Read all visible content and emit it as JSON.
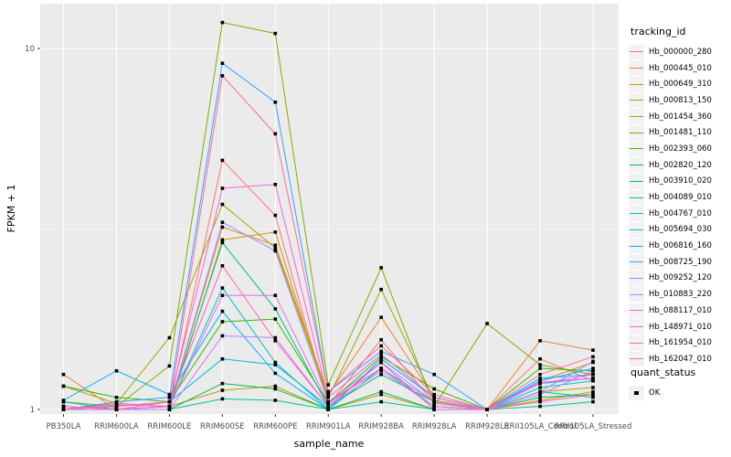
{
  "figure": {
    "background": "#FFFFFF",
    "panel_background": "#EBEBEB",
    "grid_color": "#FFFFFF",
    "tick_color": "#333333",
    "tick_label_color": "#4D4D4D",
    "point_color": "#000000",
    "legend_key_background": "#F2F2F2"
  },
  "axes": {
    "x_title": "sample_name",
    "y_title": "FPKM + 1",
    "y_tick_labels": [
      "10",
      "1"
    ]
  },
  "legend": {
    "tracking_title": "tracking_id",
    "quant_title": "quant_status",
    "quant_items": [
      {
        "label": "OK",
        "marker": "filled-square",
        "color": "#000000"
      }
    ]
  },
  "chart_data": {
    "type": "line",
    "title": "",
    "xlabel": "sample_name",
    "ylabel": "FPKM + 1",
    "y_scale": "log10",
    "y_ticks": [
      1,
      10
    ],
    "y_minor_ticks": [
      3.1623
    ],
    "ylim": [
      0.97,
      13.3
    ],
    "legend_position": "right",
    "point_marker": "filled-square",
    "x_categories": [
      "PB350LA",
      "RRIM600LA",
      "RRIM600LE",
      "RRIM600SE",
      "RRIM600PE",
      "RRIM901LA",
      "RRIM928BA",
      "RRIM928LA",
      "RRIM928LE",
      "RRII105LA_Control",
      "RRII105LA_Stressed"
    ],
    "series": [
      {
        "name": "Hb_000000_280",
        "color": "#F8766D",
        "values": [
          1.0,
          1.04,
          1.02,
          4.9,
          3.45,
          1.03,
          1.56,
          1.04,
          1.0,
          1.38,
          1.2
        ]
      },
      {
        "name": "Hb_000445_010",
        "color": "#EA8331",
        "values": [
          1.25,
          1.0,
          1.02,
          3.2,
          2.85,
          1.1,
          1.8,
          1.08,
          1.0,
          1.55,
          1.46
        ]
      },
      {
        "name": "Hb_000649_310",
        "color": "#D89000",
        "values": [
          1.02,
          1.0,
          1.0,
          2.95,
          3.1,
          1.05,
          1.3,
          1.02,
          1.0,
          1.2,
          1.35
        ]
      },
      {
        "name": "Hb_000813_150",
        "color": "#C09B00",
        "values": [
          1.0,
          1.0,
          1.02,
          1.13,
          1.16,
          1.0,
          1.1,
          1.0,
          1.0,
          1.06,
          1.12
        ]
      },
      {
        "name": "Hb_001454_360",
        "color": "#A3A500",
        "values": [
          1.16,
          1.04,
          1.58,
          3.7,
          2.8,
          1.08,
          2.15,
          1.06,
          1.0,
          1.12,
          1.15
        ]
      },
      {
        "name": "Hb_001481_110",
        "color": "#7CAE00",
        "values": [
          1.05,
          1.02,
          1.32,
          11.8,
          11.0,
          1.17,
          2.47,
          1.02,
          1.73,
          1.33,
          1.25
        ]
      },
      {
        "name": "Hb_002393_060",
        "color": "#39B600",
        "values": [
          1.16,
          1.08,
          1.05,
          1.75,
          1.78,
          1.04,
          1.4,
          1.14,
          1.0,
          1.3,
          1.28
        ]
      },
      {
        "name": "Hb_002820_120",
        "color": "#00BB4E",
        "values": [
          1.0,
          1.0,
          1.0,
          1.18,
          1.14,
          1.0,
          1.12,
          1.0,
          1.0,
          1.08,
          1.1
        ]
      },
      {
        "name": "Hb_003910_020",
        "color": "#00BF7D",
        "values": [
          1.0,
          1.0,
          1.02,
          2.9,
          1.9,
          1.02,
          1.25,
          1.05,
          1.0,
          1.12,
          1.08
        ]
      },
      {
        "name": "Hb_004089_010",
        "color": "#00C1A3",
        "values": [
          1.0,
          1.0,
          1.0,
          1.07,
          1.06,
          1.0,
          1.05,
          1.0,
          1.0,
          1.02,
          1.05
        ]
      },
      {
        "name": "Hb_004767_010",
        "color": "#00BFC4",
        "values": [
          1.05,
          1.0,
          1.02,
          2.17,
          1.35,
          1.0,
          1.3,
          1.02,
          1.0,
          1.15,
          1.2
        ]
      },
      {
        "name": "Hb_005694_030",
        "color": "#00BAE0",
        "values": [
          1.0,
          1.02,
          1.05,
          1.38,
          1.33,
          1.02,
          1.35,
          1.0,
          1.0,
          1.18,
          1.22
        ]
      },
      {
        "name": "Hb_006816_160",
        "color": "#00B0F6",
        "values": [
          1.06,
          1.28,
          1.1,
          1.87,
          1.26,
          1.0,
          1.38,
          1.08,
          1.0,
          1.22,
          1.25
        ]
      },
      {
        "name": "Hb_008725_190",
        "color": "#35A2FF",
        "values": [
          1.0,
          1.05,
          1.08,
          9.1,
          7.1,
          1.12,
          1.45,
          1.25,
          1.0,
          1.2,
          1.3
        ]
      },
      {
        "name": "Hb_009252_120",
        "color": "#9590FF",
        "values": [
          1.0,
          1.0,
          1.02,
          3.3,
          2.75,
          1.05,
          1.35,
          1.05,
          1.0,
          1.12,
          1.36
        ]
      },
      {
        "name": "Hb_010883_220",
        "color": "#C77CFF",
        "values": [
          1.0,
          1.0,
          1.0,
          1.6,
          1.58,
          1.02,
          1.28,
          1.02,
          1.0,
          1.1,
          1.28
        ]
      },
      {
        "name": "Hb_088117_010",
        "color": "#E76BF3",
        "values": [
          1.02,
          1.0,
          1.02,
          2.07,
          2.07,
          1.04,
          1.3,
          1.05,
          1.0,
          1.18,
          1.25
        ]
      },
      {
        "name": "Hb_148971_010",
        "color": "#FA62DB",
        "values": [
          1.0,
          1.02,
          1.05,
          4.1,
          4.2,
          1.08,
          1.42,
          1.08,
          1.0,
          1.19,
          1.22
        ]
      },
      {
        "name": "Hb_161954_010",
        "color": "#FF62BC",
        "values": [
          1.02,
          1.0,
          1.05,
          2.5,
          1.55,
          1.02,
          1.35,
          1.0,
          1.0,
          1.05,
          1.1
        ]
      },
      {
        "name": "Hb_162047_010",
        "color": "#FF6A98",
        "values": [
          1.0,
          1.03,
          1.02,
          8.4,
          5.8,
          1.12,
          1.5,
          1.1,
          1.0,
          1.25,
          1.4
        ]
      }
    ]
  }
}
